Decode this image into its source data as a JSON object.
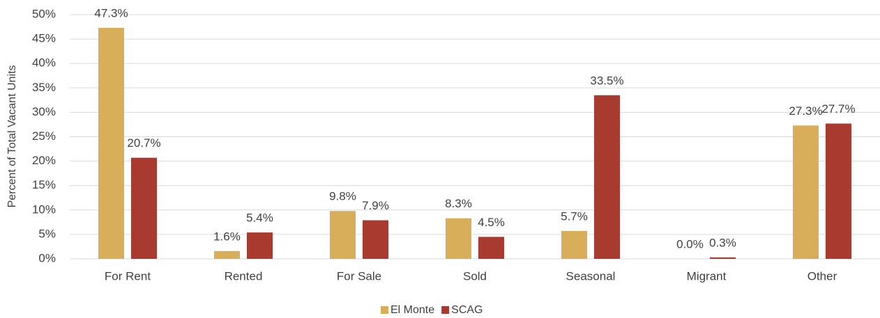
{
  "chart_data": {
    "type": "bar",
    "y_label": "Percent of Total Vacant Units",
    "categories": [
      "For Rent",
      "Rented",
      "For Sale",
      "Sold",
      "Seasonal",
      "Migrant",
      "Other"
    ],
    "series": [
      {
        "name": "El Monte",
        "color": "#d9ae5a",
        "values": [
          47.3,
          1.6,
          9.8,
          8.3,
          5.7,
          0.0,
          27.3
        ],
        "value_labels": [
          "47.3%",
          "1.6%",
          "9.8%",
          "8.3%",
          "5.7%",
          "0.0%",
          "27.3%"
        ]
      },
      {
        "name": "SCAG",
        "color": "#a93a2f",
        "values": [
          20.7,
          5.4,
          7.9,
          4.5,
          33.5,
          0.3,
          27.7
        ],
        "value_labels": [
          "20.7%",
          "5.4%",
          "7.9%",
          "4.5%",
          "33.5%",
          "0.3%",
          "27.7%"
        ]
      }
    ],
    "ylim": [
      0,
      50
    ],
    "yticks": [
      {
        "value": 0,
        "label": "0%"
      },
      {
        "value": 5,
        "label": "5%"
      },
      {
        "value": 10,
        "label": "10%"
      },
      {
        "value": 15,
        "label": "15%"
      },
      {
        "value": 20,
        "label": "20%"
      },
      {
        "value": 25,
        "label": "25%"
      },
      {
        "value": 30,
        "label": "30%"
      },
      {
        "value": 35,
        "label": "35%"
      },
      {
        "value": 40,
        "label": "40%"
      },
      {
        "value": 45,
        "label": "45%"
      },
      {
        "value": 50,
        "label": "50%"
      }
    ],
    "grid": true,
    "legend": "bottom"
  }
}
